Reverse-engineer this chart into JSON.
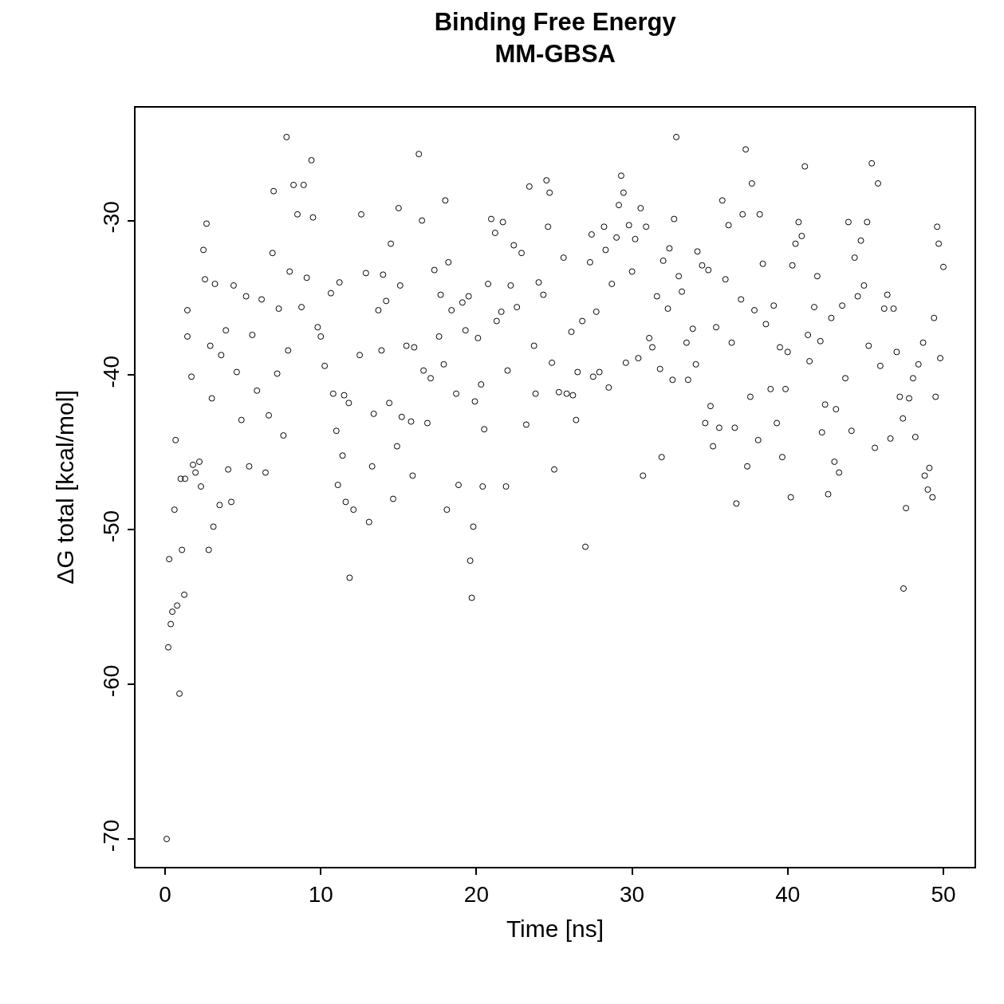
{
  "chart_data": {
    "type": "scatter",
    "title": "Binding Free Energy\nMM-GBSA",
    "xlabel": "Time [ns]",
    "ylabel": "ΔG total [kcal/mol]",
    "xlim": [
      -1.9,
      52.0
    ],
    "ylim": [
      -71.8,
      -22.7
    ],
    "xticks": [
      0,
      10,
      20,
      30,
      40,
      50
    ],
    "yticks": [
      -70,
      -60,
      -50,
      -40,
      -30
    ],
    "marker": "circle",
    "series": [
      {
        "color": "#000000",
        "x": [
          0.1,
          0.2,
          0.26,
          0.36,
          0.46,
          0.6,
          0.67,
          0.77,
          0.92,
          1.0,
          1.08,
          1.23,
          1.28,
          1.43,
          1.43,
          1.69,
          1.79,
          1.95,
          2.2,
          2.3,
          2.46,
          2.66,
          2.56,
          2.8,
          2.9,
          3.0,
          3.1,
          3.2,
          3.6,
          3.5,
          3.9,
          4.05,
          4.25,
          4.4,
          4.6,
          4.9,
          5.2,
          5.4,
          5.6,
          5.9,
          6.2,
          6.45,
          6.66,
          6.9,
          6.97,
          7.2,
          7.3,
          7.6,
          7.8,
          7.9,
          8.0,
          8.25,
          8.5,
          8.76,
          8.9,
          9.1,
          9.4,
          9.5,
          9.8,
          10.0,
          10.25,
          10.65,
          10.8,
          11.0,
          11.2,
          11.1,
          11.4,
          11.5,
          11.6,
          11.8,
          11.85,
          12.1,
          12.5,
          12.6,
          12.9,
          13.1,
          13.3,
          13.4,
          13.7,
          13.9,
          14.0,
          14.2,
          14.4,
          14.5,
          14.65,
          14.9,
          15.0,
          15.1,
          15.2,
          15.5,
          15.8,
          15.9,
          16.0,
          16.3,
          16.5,
          16.6,
          16.85,
          17.06,
          17.3,
          17.6,
          17.7,
          17.9,
          18.0,
          18.1,
          18.2,
          18.4,
          18.7,
          18.85,
          19.1,
          19.3,
          19.5,
          19.6,
          19.7,
          19.8,
          19.9,
          20.1,
          20.3,
          20.4,
          20.5,
          20.75,
          20.95,
          21.2,
          21.3,
          21.6,
          21.7,
          21.9,
          22.0,
          22.2,
          22.4,
          22.6,
          22.9,
          23.2,
          23.4,
          23.7,
          23.8,
          24.0,
          24.3,
          24.5,
          24.6,
          24.7,
          24.85,
          25.0,
          25.3,
          25.6,
          25.8,
          26.1,
          26.2,
          26.4,
          26.5,
          26.8,
          27.0,
          27.3,
          27.4,
          27.5,
          27.7,
          27.9,
          28.2,
          28.3,
          28.5,
          28.7,
          29.0,
          29.15,
          29.3,
          29.45,
          29.6,
          29.8,
          30.0,
          30.2,
          30.4,
          30.55,
          30.7,
          30.9,
          31.1,
          31.3,
          31.6,
          31.8,
          31.9,
          32.0,
          32.3,
          32.4,
          32.6,
          32.84,
          32.7,
          33.0,
          33.2,
          33.5,
          33.6,
          33.9,
          34.1,
          34.2,
          34.5,
          34.7,
          34.9,
          35.04,
          35.2,
          35.4,
          35.6,
          35.8,
          36.0,
          36.2,
          36.4,
          36.6,
          36.7,
          37.0,
          37.1,
          37.3,
          37.4,
          37.6,
          37.7,
          37.86,
          38.1,
          38.2,
          38.4,
          38.6,
          38.9,
          39.1,
          39.3,
          39.5,
          39.65,
          39.86,
          40.0,
          40.2,
          40.3,
          40.5,
          40.7,
          40.9,
          41.1,
          41.3,
          41.4,
          41.7,
          41.9,
          42.1,
          42.2,
          42.4,
          42.6,
          42.8,
          43.0,
          43.1,
          43.3,
          43.5,
          43.7,
          43.9,
          44.1,
          44.3,
          44.5,
          44.7,
          44.9,
          45.1,
          45.2,
          45.4,
          45.6,
          45.8,
          45.95,
          46.2,
          46.4,
          46.6,
          46.8,
          47.0,
          47.2,
          47.4,
          47.44,
          47.6,
          47.8,
          48.05,
          48.2,
          48.4,
          48.7,
          48.8,
          49.0,
          49.1,
          49.3,
          49.4,
          49.5,
          49.7,
          49.6,
          49.8,
          50.0
        ],
        "values": [
          -70.0,
          -57.6,
          -51.9,
          -56.1,
          -55.3,
          -48.7,
          -44.2,
          -54.9,
          -60.6,
          -46.7,
          -51.3,
          -54.2,
          -46.7,
          -35.8,
          -37.5,
          -40.1,
          -45.8,
          -46.3,
          -45.6,
          -47.2,
          -31.9,
          -30.2,
          -33.8,
          -51.3,
          -38.1,
          -41.5,
          -49.8,
          -34.1,
          -38.7,
          -48.4,
          -37.1,
          -46.1,
          -48.2,
          -34.2,
          -39.8,
          -42.9,
          -34.9,
          -45.9,
          -37.4,
          -41.0,
          -35.1,
          -46.3,
          -42.6,
          -32.1,
          -28.1,
          -39.9,
          -35.7,
          -43.9,
          -24.6,
          -38.4,
          -33.3,
          -27.7,
          -29.6,
          -35.6,
          -27.7,
          -33.7,
          -26.1,
          -29.8,
          -36.9,
          -37.5,
          -39.4,
          -34.7,
          -41.2,
          -43.6,
          -34.0,
          -47.1,
          -45.2,
          -41.3,
          -48.2,
          -41.8,
          -53.1,
          -48.7,
          -38.7,
          -29.6,
          -33.4,
          -49.5,
          -45.9,
          -42.5,
          -35.8,
          -38.4,
          -33.5,
          -35.2,
          -41.8,
          -31.5,
          -48.0,
          -44.6,
          -29.2,
          -34.2,
          -42.7,
          -38.1,
          -43.0,
          -46.5,
          -38.2,
          -25.7,
          -30.0,
          -39.7,
          -43.1,
          -40.2,
          -33.2,
          -37.5,
          -34.8,
          -39.3,
          -28.7,
          -48.7,
          -32.7,
          -35.8,
          -41.2,
          -47.1,
          -35.3,
          -37.1,
          -34.9,
          -52.0,
          -54.4,
          -49.8,
          -41.7,
          -37.6,
          -40.6,
          -47.2,
          -43.5,
          -34.1,
          -29.9,
          -30.8,
          -36.5,
          -35.9,
          -30.1,
          -47.2,
          -39.7,
          -34.2,
          -31.6,
          -35.6,
          -32.1,
          -43.2,
          -27.8,
          -38.1,
          -41.2,
          -34.0,
          -34.8,
          -27.4,
          -30.4,
          -28.2,
          -39.2,
          -46.1,
          -41.1,
          -32.4,
          -41.2,
          -37.2,
          -41.3,
          -42.9,
          -39.8,
          -36.5,
          -51.1,
          -32.7,
          -30.9,
          -40.1,
          -35.9,
          -39.8,
          -30.4,
          -31.9,
          -40.8,
          -34.1,
          -31.1,
          -29.0,
          -27.1,
          -28.2,
          -39.2,
          -30.3,
          -33.3,
          -31.2,
          -38.9,
          -29.2,
          -46.5,
          -30.4,
          -37.6,
          -38.2,
          -34.9,
          -39.6,
          -45.3,
          -32.6,
          -35.7,
          -31.8,
          -40.3,
          -24.6,
          -29.9,
          -33.6,
          -34.6,
          -37.9,
          -40.3,
          -37.0,
          -39.3,
          -32.0,
          -32.9,
          -43.1,
          -33.2,
          -42.0,
          -44.6,
          -36.9,
          -43.4,
          -28.7,
          -33.8,
          -30.3,
          -37.9,
          -43.4,
          -48.3,
          -35.1,
          -29.6,
          -25.4,
          -45.9,
          -41.4,
          -27.6,
          -35.8,
          -44.2,
          -29.6,
          -32.8,
          -36.7,
          -40.9,
          -35.5,
          -43.1,
          -38.2,
          -45.3,
          -40.9,
          -38.5,
          -47.9,
          -32.9,
          -31.5,
          -30.1,
          -31.0,
          -26.5,
          -37.4,
          -39.1,
          -35.6,
          -33.6,
          -37.8,
          -43.7,
          -41.9,
          -47.7,
          -36.3,
          -45.6,
          -42.2,
          -46.3,
          -35.5,
          -40.2,
          -30.1,
          -43.6,
          -32.4,
          -34.9,
          -31.3,
          -34.2,
          -30.1,
          -38.1,
          -26.3,
          -44.7,
          -27.6,
          -39.4,
          -35.7,
          -34.8,
          -44.1,
          -35.7,
          -38.5,
          -41.4,
          -42.8,
          -53.8,
          -48.6,
          -41.5,
          -40.2,
          -44.0,
          -39.3,
          -37.9,
          -46.5,
          -47.4,
          -46.0,
          -47.9,
          -36.3,
          -41.4,
          -31.5,
          -30.4,
          -38.9,
          -33.0
        ]
      }
    ]
  }
}
